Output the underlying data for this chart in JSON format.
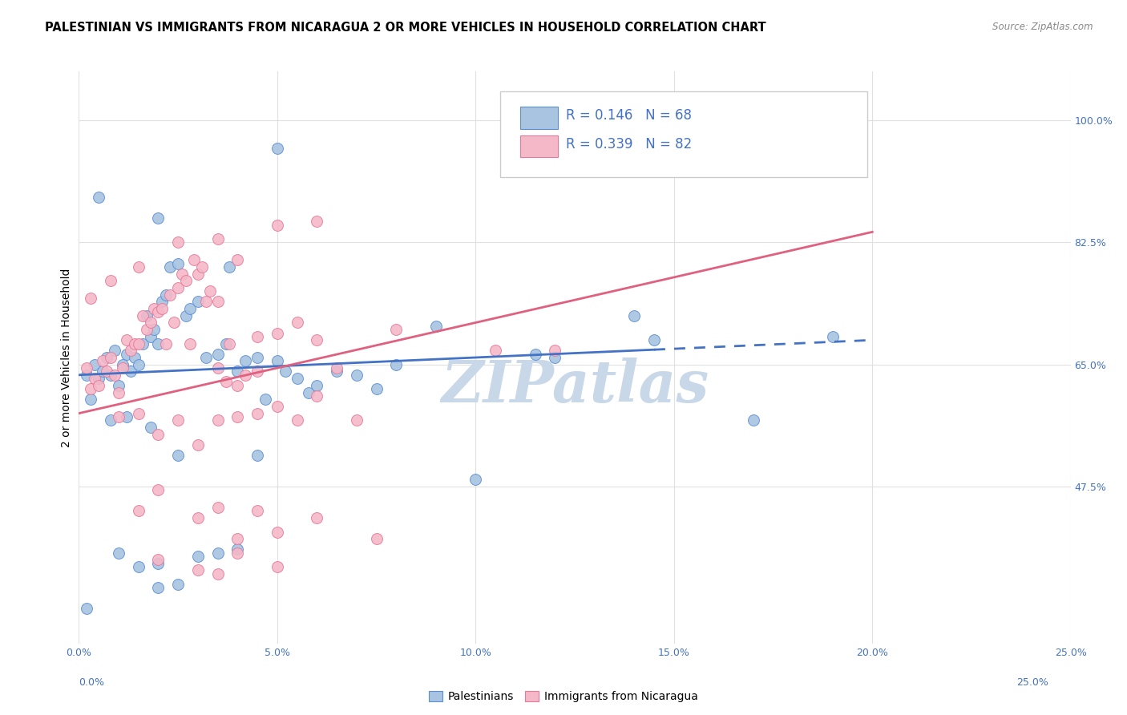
{
  "title": "PALESTINIAN VS IMMIGRANTS FROM NICARAGUA 2 OR MORE VEHICLES IN HOUSEHOLD CORRELATION CHART",
  "source": "Source: ZipAtlas.com",
  "xlabel_vals": [
    0.0,
    5.0,
    10.0,
    15.0,
    20.0,
    25.0
  ],
  "ylabel_vals": [
    47.5,
    65.0,
    82.5,
    100.0
  ],
  "ylabel_label": "2 or more Vehicles in Household",
  "legend_blue_label": "Palestinians",
  "legend_pink_label": "Immigrants from Nicaragua",
  "r_blue": "0.146",
  "n_blue": "68",
  "r_pink": "0.339",
  "n_pink": "82",
  "blue_fill": "#a8c4e0",
  "pink_fill": "#f4b8c8",
  "blue_edge": "#5b8dd9",
  "pink_edge": "#e87898",
  "blue_line_color": "#4472c4",
  "pink_line_color": "#e06080",
  "blue_scatter": [
    [
      0.2,
      63.5
    ],
    [
      0.3,
      60.0
    ],
    [
      0.4,
      65.0
    ],
    [
      0.5,
      63.0
    ],
    [
      0.6,
      64.0
    ],
    [
      0.7,
      66.0
    ],
    [
      0.8,
      63.5
    ],
    [
      0.9,
      67.0
    ],
    [
      1.0,
      62.0
    ],
    [
      1.1,
      65.0
    ],
    [
      1.2,
      66.5
    ],
    [
      1.3,
      64.0
    ],
    [
      1.4,
      66.0
    ],
    [
      1.5,
      65.0
    ],
    [
      1.6,
      68.0
    ],
    [
      1.7,
      72.0
    ],
    [
      1.8,
      69.0
    ],
    [
      1.9,
      70.0
    ],
    [
      2.0,
      68.0
    ],
    [
      2.1,
      74.0
    ],
    [
      2.2,
      75.0
    ],
    [
      2.3,
      79.0
    ],
    [
      2.5,
      79.5
    ],
    [
      2.7,
      72.0
    ],
    [
      2.8,
      73.0
    ],
    [
      3.0,
      74.0
    ],
    [
      3.2,
      66.0
    ],
    [
      3.5,
      66.5
    ],
    [
      3.7,
      68.0
    ],
    [
      3.8,
      79.0
    ],
    [
      4.0,
      64.0
    ],
    [
      4.2,
      65.5
    ],
    [
      4.5,
      66.0
    ],
    [
      4.7,
      60.0
    ],
    [
      5.0,
      65.5
    ],
    [
      5.2,
      64.0
    ],
    [
      5.5,
      63.0
    ],
    [
      5.8,
      61.0
    ],
    [
      6.0,
      62.0
    ],
    [
      6.5,
      64.0
    ],
    [
      7.0,
      63.5
    ],
    [
      7.5,
      61.5
    ],
    [
      8.0,
      65.0
    ],
    [
      9.0,
      70.5
    ],
    [
      10.0,
      48.5
    ],
    [
      11.5,
      66.5
    ],
    [
      12.0,
      66.0
    ],
    [
      14.5,
      68.5
    ],
    [
      17.0,
      57.0
    ],
    [
      1.0,
      38.0
    ],
    [
      1.5,
      36.0
    ],
    [
      2.0,
      36.5
    ],
    [
      2.0,
      33.0
    ],
    [
      2.5,
      33.5
    ],
    [
      3.0,
      37.5
    ],
    [
      3.5,
      38.0
    ],
    [
      4.0,
      38.5
    ],
    [
      0.8,
      57.0
    ],
    [
      1.2,
      57.5
    ],
    [
      1.8,
      56.0
    ],
    [
      2.5,
      52.0
    ],
    [
      4.5,
      52.0
    ],
    [
      5.0,
      96.0
    ],
    [
      0.5,
      89.0
    ],
    [
      2.0,
      86.0
    ],
    [
      14.0,
      72.0
    ],
    [
      19.0,
      69.0
    ],
    [
      0.2,
      30.0
    ]
  ],
  "pink_scatter": [
    [
      0.2,
      64.5
    ],
    [
      0.3,
      61.5
    ],
    [
      0.4,
      63.0
    ],
    [
      0.5,
      62.0
    ],
    [
      0.6,
      65.5
    ],
    [
      0.7,
      64.0
    ],
    [
      0.8,
      66.0
    ],
    [
      0.9,
      63.5
    ],
    [
      1.0,
      61.0
    ],
    [
      1.1,
      64.5
    ],
    [
      1.2,
      68.5
    ],
    [
      1.3,
      67.0
    ],
    [
      1.4,
      68.0
    ],
    [
      1.5,
      68.0
    ],
    [
      1.6,
      72.0
    ],
    [
      1.7,
      70.0
    ],
    [
      1.8,
      71.0
    ],
    [
      1.9,
      73.0
    ],
    [
      2.0,
      72.5
    ],
    [
      2.1,
      73.0
    ],
    [
      2.2,
      68.0
    ],
    [
      2.3,
      75.0
    ],
    [
      2.4,
      71.0
    ],
    [
      2.5,
      76.0
    ],
    [
      2.6,
      78.0
    ],
    [
      2.7,
      77.0
    ],
    [
      2.8,
      68.0
    ],
    [
      2.9,
      80.0
    ],
    [
      3.0,
      78.0
    ],
    [
      3.1,
      79.0
    ],
    [
      3.2,
      74.0
    ],
    [
      3.3,
      75.5
    ],
    [
      3.5,
      74.0
    ],
    [
      3.7,
      62.5
    ],
    [
      3.8,
      68.0
    ],
    [
      4.0,
      62.0
    ],
    [
      4.2,
      63.5
    ],
    [
      4.5,
      64.0
    ],
    [
      5.0,
      69.5
    ],
    [
      5.5,
      71.0
    ],
    [
      6.0,
      68.5
    ],
    [
      6.5,
      64.5
    ],
    [
      7.0,
      57.0
    ],
    [
      8.0,
      70.0
    ],
    [
      10.5,
      67.0
    ],
    [
      1.5,
      79.0
    ],
    [
      2.5,
      82.5
    ],
    [
      3.5,
      83.0
    ],
    [
      5.0,
      85.0
    ],
    [
      6.0,
      85.5
    ],
    [
      1.0,
      57.5
    ],
    [
      1.5,
      58.0
    ],
    [
      2.0,
      55.0
    ],
    [
      2.5,
      57.0
    ],
    [
      3.0,
      53.5
    ],
    [
      3.5,
      57.0
    ],
    [
      4.0,
      57.5
    ],
    [
      4.5,
      58.0
    ],
    [
      5.0,
      59.0
    ],
    [
      5.5,
      57.0
    ],
    [
      2.0,
      47.0
    ],
    [
      3.0,
      43.0
    ],
    [
      4.0,
      40.0
    ],
    [
      5.0,
      41.0
    ],
    [
      6.0,
      43.0
    ],
    [
      2.0,
      37.0
    ],
    [
      3.0,
      35.5
    ],
    [
      3.5,
      35.0
    ],
    [
      4.0,
      38.0
    ],
    [
      5.0,
      36.0
    ],
    [
      0.3,
      74.5
    ],
    [
      0.8,
      77.0
    ],
    [
      4.0,
      80.0
    ],
    [
      7.5,
      40.0
    ],
    [
      15.0,
      98.0
    ],
    [
      12.0,
      67.0
    ],
    [
      4.5,
      44.0
    ],
    [
      3.5,
      44.5
    ],
    [
      1.5,
      44.0
    ],
    [
      6.0,
      60.5
    ],
    [
      3.5,
      64.5
    ],
    [
      4.5,
      69.0
    ]
  ],
  "blue_reg_x0": 0.0,
  "blue_reg_y0": 63.5,
  "blue_reg_x1": 20.0,
  "blue_reg_y1": 68.5,
  "blue_dash_start": 14.5,
  "pink_reg_x0": 0.0,
  "pink_reg_y0": 58.0,
  "pink_reg_x1": 20.0,
  "pink_reg_y1": 84.0,
  "xmin": 0.0,
  "xmax": 25.0,
  "ymin": 25.0,
  "ymax": 107.0,
  "background_color": "#ffffff",
  "grid_color": "#e0e0e0",
  "watermark_text": "ZIPatlas",
  "watermark_color": "#c8d8e8",
  "title_fontsize": 10.5,
  "axis_label_fontsize": 10,
  "tick_fontsize": 9,
  "legend_fontsize": 12,
  "legend_text_color": "#4472c4"
}
